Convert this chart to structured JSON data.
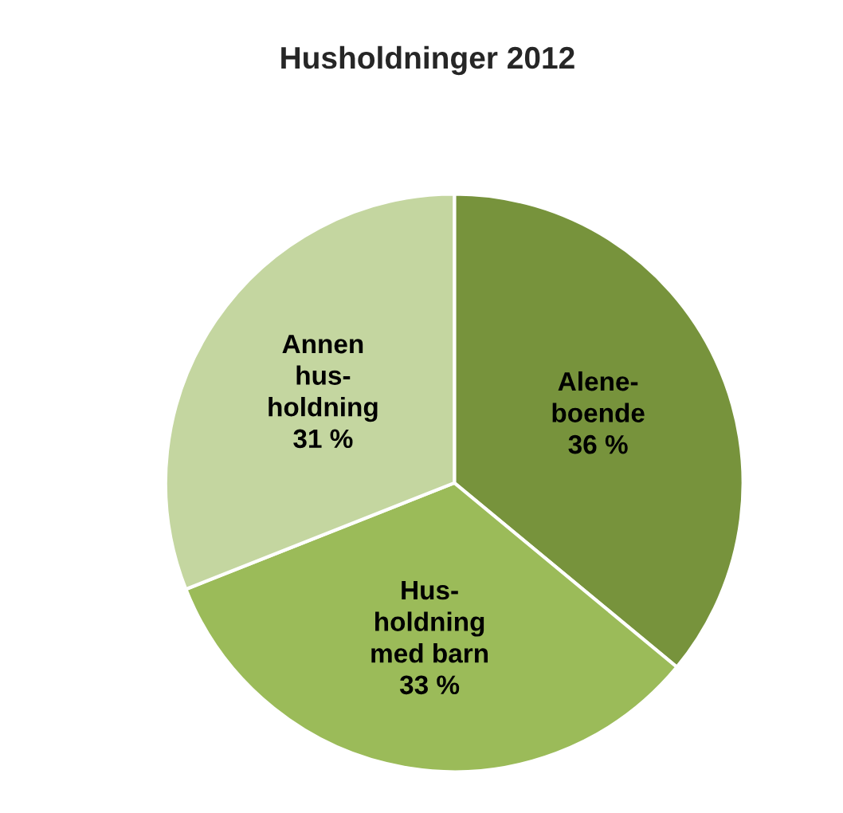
{
  "chart_data": {
    "type": "pie",
    "title": "Husholdninger 2012",
    "categories": [
      "Alene-\nboende",
      "Hus-\nholdning\nmed barn",
      "Annen\nhus-\nholdning"
    ],
    "values": [
      36,
      33,
      31
    ],
    "value_labels": [
      "36 %",
      "33 %",
      "31 %"
    ],
    "colors": [
      "#77933c",
      "#9bbb59",
      "#c4d6a0"
    ],
    "legend": false
  }
}
